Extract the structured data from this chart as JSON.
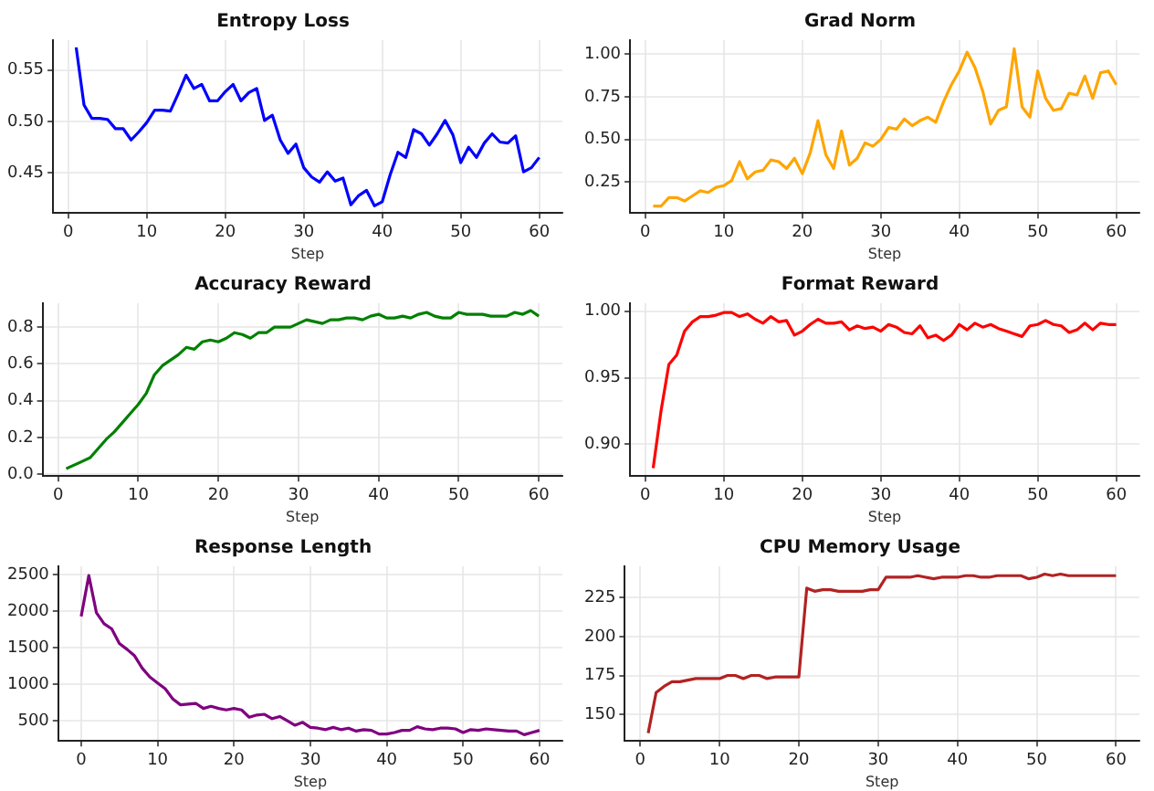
{
  "chart_data": [
    {
      "type": "line",
      "title": "Entropy Loss",
      "xlabel": "Step",
      "x": [
        1,
        2,
        3,
        4,
        5,
        6,
        7,
        8,
        9,
        10,
        11,
        12,
        13,
        14,
        15,
        16,
        17,
        18,
        19,
        20,
        21,
        22,
        23,
        24,
        25,
        26,
        27,
        28,
        29,
        30,
        31,
        32,
        33,
        34,
        35,
        36,
        37,
        38,
        39,
        40,
        41,
        42,
        43,
        44,
        45,
        46,
        47,
        48,
        49,
        50,
        51,
        52,
        53,
        54,
        55,
        56,
        57,
        58,
        59,
        60
      ],
      "series": [
        {
          "color": "#0000ff",
          "values": [
            0.572,
            0.516,
            0.503,
            0.503,
            0.502,
            0.493,
            0.493,
            0.482,
            0.49,
            0.499,
            0.511,
            0.511,
            0.51,
            0.527,
            0.545,
            0.532,
            0.536,
            0.52,
            0.52,
            0.529,
            0.536,
            0.52,
            0.528,
            0.532,
            0.501,
            0.506,
            0.482,
            0.469,
            0.478,
            0.455,
            0.446,
            0.441,
            0.451,
            0.442,
            0.445,
            0.419,
            0.428,
            0.433,
            0.418,
            0.422,
            0.448,
            0.47,
            0.465,
            0.492,
            0.488,
            0.477,
            0.488,
            0.501,
            0.487,
            0.46,
            0.475,
            0.465,
            0.479,
            0.488,
            0.48,
            0.479,
            0.486,
            0.451,
            0.455,
            0.465
          ]
        }
      ],
      "xlim": [
        -1.95,
        62.95
      ],
      "xticks": [
        0,
        10,
        20,
        30,
        40,
        50,
        60
      ],
      "ylim": [
        0.411,
        0.579
      ],
      "yticks": [
        {
          "value": 0.45,
          "label": "0.45"
        },
        {
          "value": 0.5,
          "label": "0.50"
        },
        {
          "value": 0.55,
          "label": "0.55"
        }
      ],
      "grid": true
    },
    {
      "type": "line",
      "title": "Grad Norm",
      "xlabel": "Step",
      "x": [
        1,
        2,
        3,
        4,
        5,
        6,
        7,
        8,
        9,
        10,
        11,
        12,
        13,
        14,
        15,
        16,
        17,
        18,
        19,
        20,
        21,
        22,
        23,
        24,
        25,
        26,
        27,
        28,
        29,
        30,
        31,
        32,
        33,
        34,
        35,
        36,
        37,
        38,
        39,
        40,
        41,
        42,
        43,
        44,
        45,
        46,
        47,
        48,
        49,
        50,
        51,
        52,
        53,
        54,
        55,
        56,
        57,
        58,
        59,
        60
      ],
      "series": [
        {
          "color": "#ffa500",
          "values": [
            0.11,
            0.11,
            0.16,
            0.16,
            0.14,
            0.17,
            0.2,
            0.19,
            0.22,
            0.23,
            0.26,
            0.37,
            0.27,
            0.31,
            0.32,
            0.38,
            0.37,
            0.33,
            0.39,
            0.3,
            0.42,
            0.61,
            0.41,
            0.33,
            0.55,
            0.35,
            0.39,
            0.48,
            0.46,
            0.5,
            0.57,
            0.56,
            0.62,
            0.58,
            0.61,
            0.63,
            0.6,
            0.72,
            0.82,
            0.9,
            1.01,
            0.92,
            0.78,
            0.59,
            0.67,
            0.69,
            1.03,
            0.69,
            0.63,
            0.9,
            0.74,
            0.67,
            0.68,
            0.77,
            0.76,
            0.87,
            0.74,
            0.89,
            0.9,
            0.82
          ]
        }
      ],
      "xlim": [
        -1.95,
        62.95
      ],
      "xticks": [
        0,
        10,
        20,
        30,
        40,
        50,
        60
      ],
      "ylim": [
        0.07,
        1.08
      ],
      "yticks": [
        {
          "value": 0.25,
          "label": "0.25"
        },
        {
          "value": 0.5,
          "label": "0.50"
        },
        {
          "value": 0.75,
          "label": "0.75"
        },
        {
          "value": 1,
          "label": "1.00"
        }
      ],
      "grid": true
    },
    {
      "type": "line",
      "title": "Accuracy Reward",
      "xlabel": "Step",
      "x": [
        1,
        2,
        3,
        4,
        5,
        6,
        7,
        8,
        9,
        10,
        11,
        12,
        13,
        14,
        15,
        16,
        17,
        18,
        19,
        20,
        21,
        22,
        23,
        24,
        25,
        26,
        27,
        28,
        29,
        30,
        31,
        32,
        33,
        34,
        35,
        36,
        37,
        38,
        39,
        40,
        41,
        42,
        43,
        44,
        45,
        46,
        47,
        48,
        49,
        50,
        51,
        52,
        53,
        54,
        55,
        56,
        57,
        58,
        59,
        60
      ],
      "series": [
        {
          "color": "#008000",
          "values": [
            0.03,
            0.05,
            0.07,
            0.09,
            0.14,
            0.19,
            0.23,
            0.28,
            0.33,
            0.38,
            0.44,
            0.54,
            0.59,
            0.62,
            0.65,
            0.69,
            0.68,
            0.72,
            0.73,
            0.72,
            0.74,
            0.77,
            0.76,
            0.74,
            0.77,
            0.77,
            0.8,
            0.8,
            0.8,
            0.82,
            0.84,
            0.83,
            0.82,
            0.84,
            0.84,
            0.85,
            0.85,
            0.84,
            0.86,
            0.87,
            0.85,
            0.85,
            0.86,
            0.85,
            0.87,
            0.88,
            0.86,
            0.85,
            0.85,
            0.88,
            0.87,
            0.87,
            0.87,
            0.86,
            0.86,
            0.86,
            0.88,
            0.87,
            0.89,
            0.86
          ]
        }
      ],
      "xlim": [
        -1.95,
        62.95
      ],
      "xticks": [
        0,
        10,
        20,
        30,
        40,
        50,
        60
      ],
      "ylim": [
        -0.01,
        0.93
      ],
      "yticks": [
        {
          "value": 0,
          "label": "0.0"
        },
        {
          "value": 0.2,
          "label": "0.2"
        },
        {
          "value": 0.4,
          "label": "0.4"
        },
        {
          "value": 0.6,
          "label": "0.6"
        },
        {
          "value": 0.8,
          "label": "0.8"
        }
      ],
      "grid": true
    },
    {
      "type": "line",
      "title": "Format Reward",
      "xlabel": "Step",
      "x": [
        1,
        2,
        3,
        4,
        5,
        6,
        7,
        8,
        9,
        10,
        11,
        12,
        13,
        14,
        15,
        16,
        17,
        18,
        19,
        20,
        21,
        22,
        23,
        24,
        25,
        26,
        27,
        28,
        29,
        30,
        31,
        32,
        33,
        34,
        35,
        36,
        37,
        38,
        39,
        40,
        41,
        42,
        43,
        44,
        45,
        46,
        47,
        48,
        49,
        50,
        51,
        52,
        53,
        54,
        55,
        56,
        57,
        58,
        59,
        60
      ],
      "series": [
        {
          "color": "#ff0000",
          "values": [
            0.882,
            0.925,
            0.96,
            0.967,
            0.985,
            0.992,
            0.996,
            0.996,
            0.997,
            0.999,
            0.999,
            0.996,
            0.998,
            0.994,
            0.991,
            0.996,
            0.992,
            0.993,
            0.982,
            0.985,
            0.99,
            0.994,
            0.991,
            0.991,
            0.992,
            0.986,
            0.989,
            0.987,
            0.988,
            0.985,
            0.99,
            0.988,
            0.984,
            0.983,
            0.989,
            0.98,
            0.982,
            0.978,
            0.982,
            0.99,
            0.986,
            0.991,
            0.988,
            0.99,
            0.987,
            0.985,
            0.983,
            0.981,
            0.989,
            0.99,
            0.993,
            0.99,
            0.989,
            0.984,
            0.986,
            0.991,
            0.986,
            0.991,
            0.99,
            0.99
          ]
        }
      ],
      "xlim": [
        -1.95,
        62.95
      ],
      "xticks": [
        0,
        10,
        20,
        30,
        40,
        50,
        60
      ],
      "ylim": [
        0.876,
        1.006
      ],
      "yticks": [
        {
          "value": 0.9,
          "label": "0.90"
        },
        {
          "value": 0.95,
          "label": "0.95"
        },
        {
          "value": 1,
          "label": "1.00"
        }
      ],
      "grid": true
    },
    {
      "type": "line",
      "title": "Response Length",
      "xlabel": "Step",
      "x": [
        0,
        1,
        2,
        3,
        4,
        5,
        6,
        7,
        8,
        9,
        10,
        11,
        12,
        13,
        14,
        15,
        16,
        17,
        18,
        19,
        20,
        21,
        22,
        23,
        24,
        25,
        26,
        27,
        28,
        29,
        30,
        31,
        32,
        33,
        34,
        35,
        36,
        37,
        38,
        39,
        40,
        41,
        42,
        43,
        44,
        45,
        46,
        47,
        48,
        49,
        50,
        51,
        52,
        53,
        54,
        55,
        56,
        57,
        58,
        59,
        60
      ],
      "series": [
        {
          "color": "#800080",
          "values": [
            1930,
            2490,
            1980,
            1830,
            1760,
            1560,
            1480,
            1390,
            1220,
            1100,
            1020,
            940,
            800,
            720,
            730,
            740,
            670,
            700,
            670,
            650,
            670,
            650,
            550,
            580,
            590,
            530,
            560,
            500,
            440,
            480,
            410,
            400,
            380,
            410,
            380,
            400,
            360,
            380,
            370,
            320,
            320,
            340,
            370,
            370,
            420,
            390,
            380,
            400,
            400,
            390,
            340,
            380,
            370,
            390,
            380,
            370,
            360,
            360,
            310,
            340,
            370
          ]
        }
      ],
      "xlim": [
        -3,
        63
      ],
      "xticks": [
        0,
        10,
        20,
        30,
        40,
        50,
        60
      ],
      "ylim": [
        225,
        2617
      ],
      "yticks": [
        500,
        1000,
        1500,
        2000,
        2500
      ],
      "grid": true
    },
    {
      "type": "line",
      "title": "CPU Memory Usage",
      "xlabel": "Step",
      "x": [
        1,
        2,
        3,
        4,
        5,
        6,
        7,
        8,
        9,
        10,
        11,
        12,
        13,
        14,
        15,
        16,
        17,
        18,
        19,
        20,
        21,
        22,
        23,
        24,
        25,
        26,
        27,
        28,
        29,
        30,
        31,
        32,
        33,
        34,
        35,
        36,
        37,
        38,
        39,
        40,
        41,
        42,
        43,
        44,
        45,
        46,
        47,
        48,
        49,
        50,
        51,
        52,
        53,
        54,
        55,
        56,
        57,
        58,
        59,
        60
      ],
      "series": [
        {
          "color": "#b22222",
          "values": [
            138,
            164,
            168,
            171,
            171,
            172,
            173,
            173,
            173,
            173,
            175,
            175,
            173,
            175,
            175,
            173,
            174,
            174,
            174,
            174,
            231,
            229,
            230,
            230,
            229,
            229,
            229,
            229,
            230,
            230,
            238,
            238,
            238,
            238,
            239,
            238,
            237,
            238,
            238,
            238,
            239,
            239,
            238,
            238,
            239,
            239,
            239,
            239,
            237,
            238,
            240,
            239,
            240,
            239,
            239,
            239,
            239,
            239,
            239,
            239
          ]
        }
      ],
      "xlim": [
        -1.95,
        62.95
      ],
      "xticks": [
        0,
        10,
        20,
        30,
        40,
        50,
        60
      ],
      "ylim": [
        133,
        245
      ],
      "yticks": [
        150,
        175,
        200,
        225
      ],
      "grid": true
    }
  ]
}
